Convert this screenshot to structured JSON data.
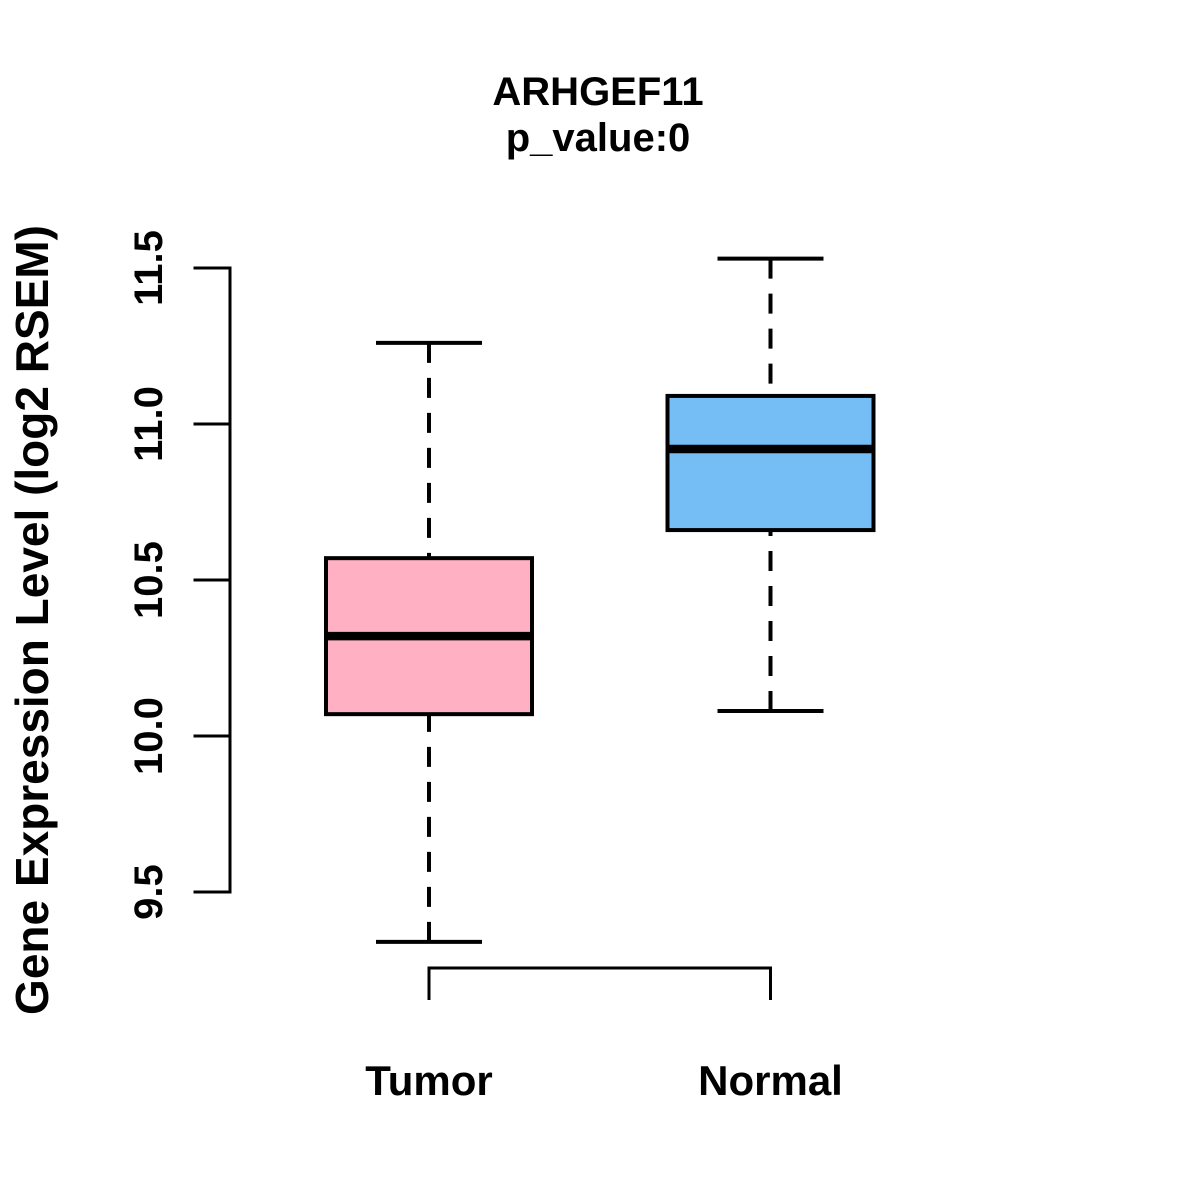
{
  "figure": {
    "title": "ARHGEF11",
    "subtitle": "p_value:0",
    "ylabel": "Gene Expression Level (log2 RSEM)"
  },
  "chart_data": {
    "type": "boxplot",
    "title": "ARHGEF11",
    "subtitle": "p_value:0",
    "ylabel": "Gene Expression Level (log2 RSEM)",
    "xlabel": "",
    "categories": [
      "Tumor",
      "Normal"
    ],
    "ylim": [
      9.5,
      11.5
    ],
    "yticks": [
      "9.5",
      "10.0",
      "10.5",
      "11.0",
      "11.5"
    ],
    "grid": false,
    "legend": "none",
    "box_border_color": "#000000",
    "series": [
      {
        "name": "Tumor",
        "color": "#FFB0C2",
        "whisker_low": 9.34,
        "q1": 10.07,
        "median": 10.32,
        "q3": 10.57,
        "whisker_high": 11.26
      },
      {
        "name": "Normal",
        "color": "#74BEF5",
        "whisker_low": 10.08,
        "q1": 10.66,
        "median": 10.92,
        "q3": 11.09,
        "whisker_high": 11.53
      }
    ]
  }
}
